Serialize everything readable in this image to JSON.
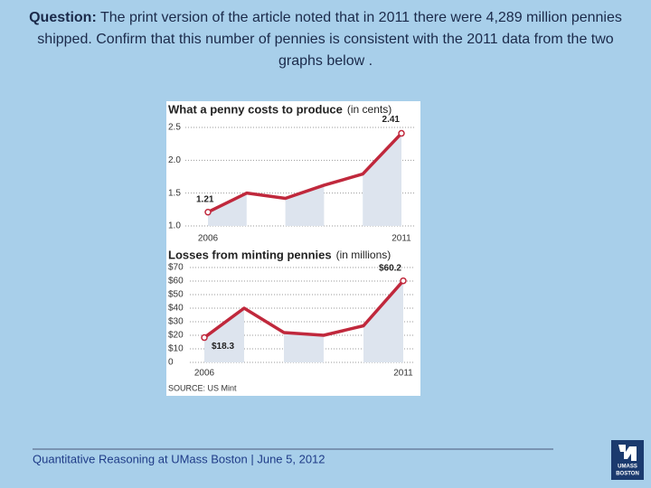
{
  "question": {
    "label": "Question:",
    "text": "The print version of the article noted that in 2011 there were 4,289 million pennies shipped. Confirm that this number of pennies is consistent with the 2011 data from the two graphs below ."
  },
  "chart_data": [
    {
      "type": "line",
      "title": "What a penny costs to produce",
      "units": "(in cents)",
      "categories": [
        "2006",
        null,
        null,
        null,
        null,
        "2011"
      ],
      "series": [
        {
          "color": "#c0283c",
          "values": [
            1.21,
            1.5,
            1.42,
            1.62,
            1.79,
            2.41
          ],
          "value_labels": [
            "1.21",
            null,
            null,
            null,
            null,
            "2.41"
          ]
        }
      ],
      "ylim": [
        1,
        2.5
      ],
      "yticks": [
        {
          "value": 1,
          "label": "1.0"
        },
        1.5,
        {
          "value": 2,
          "label": "2.0"
        },
        2.5
      ],
      "grid": true
    },
    {
      "type": "line",
      "title": "Losses from minting pennies",
      "units": "(in millions)",
      "categories": [
        "2006",
        null,
        null,
        null,
        null,
        "2011"
      ],
      "series": [
        {
          "color": "#c0283c",
          "values": [
            18.3,
            40,
            22,
            20,
            27,
            60.2
          ],
          "value_labels": [
            "$18.3",
            null,
            null,
            null,
            null,
            "$60.2"
          ]
        }
      ],
      "ylim": [
        0,
        70
      ],
      "yticks": [
        0,
        {
          "value": 10,
          "label": "$10"
        },
        {
          "value": 20,
          "label": "$20"
        },
        {
          "value": 30,
          "label": "$30"
        },
        {
          "value": 40,
          "label": "$40"
        },
        {
          "value": 50,
          "label": "$50"
        },
        {
          "value": 60,
          "label": "$60"
        },
        {
          "value": 70,
          "label": "$70"
        }
      ],
      "grid": true,
      "source": "SOURCE: US Mint"
    }
  ],
  "footer": {
    "text": "Quantitative Reasoning at UMass Boston |  June 5, 2012",
    "logo_top": "UMASS",
    "logo_bottom": "BOSTON"
  }
}
